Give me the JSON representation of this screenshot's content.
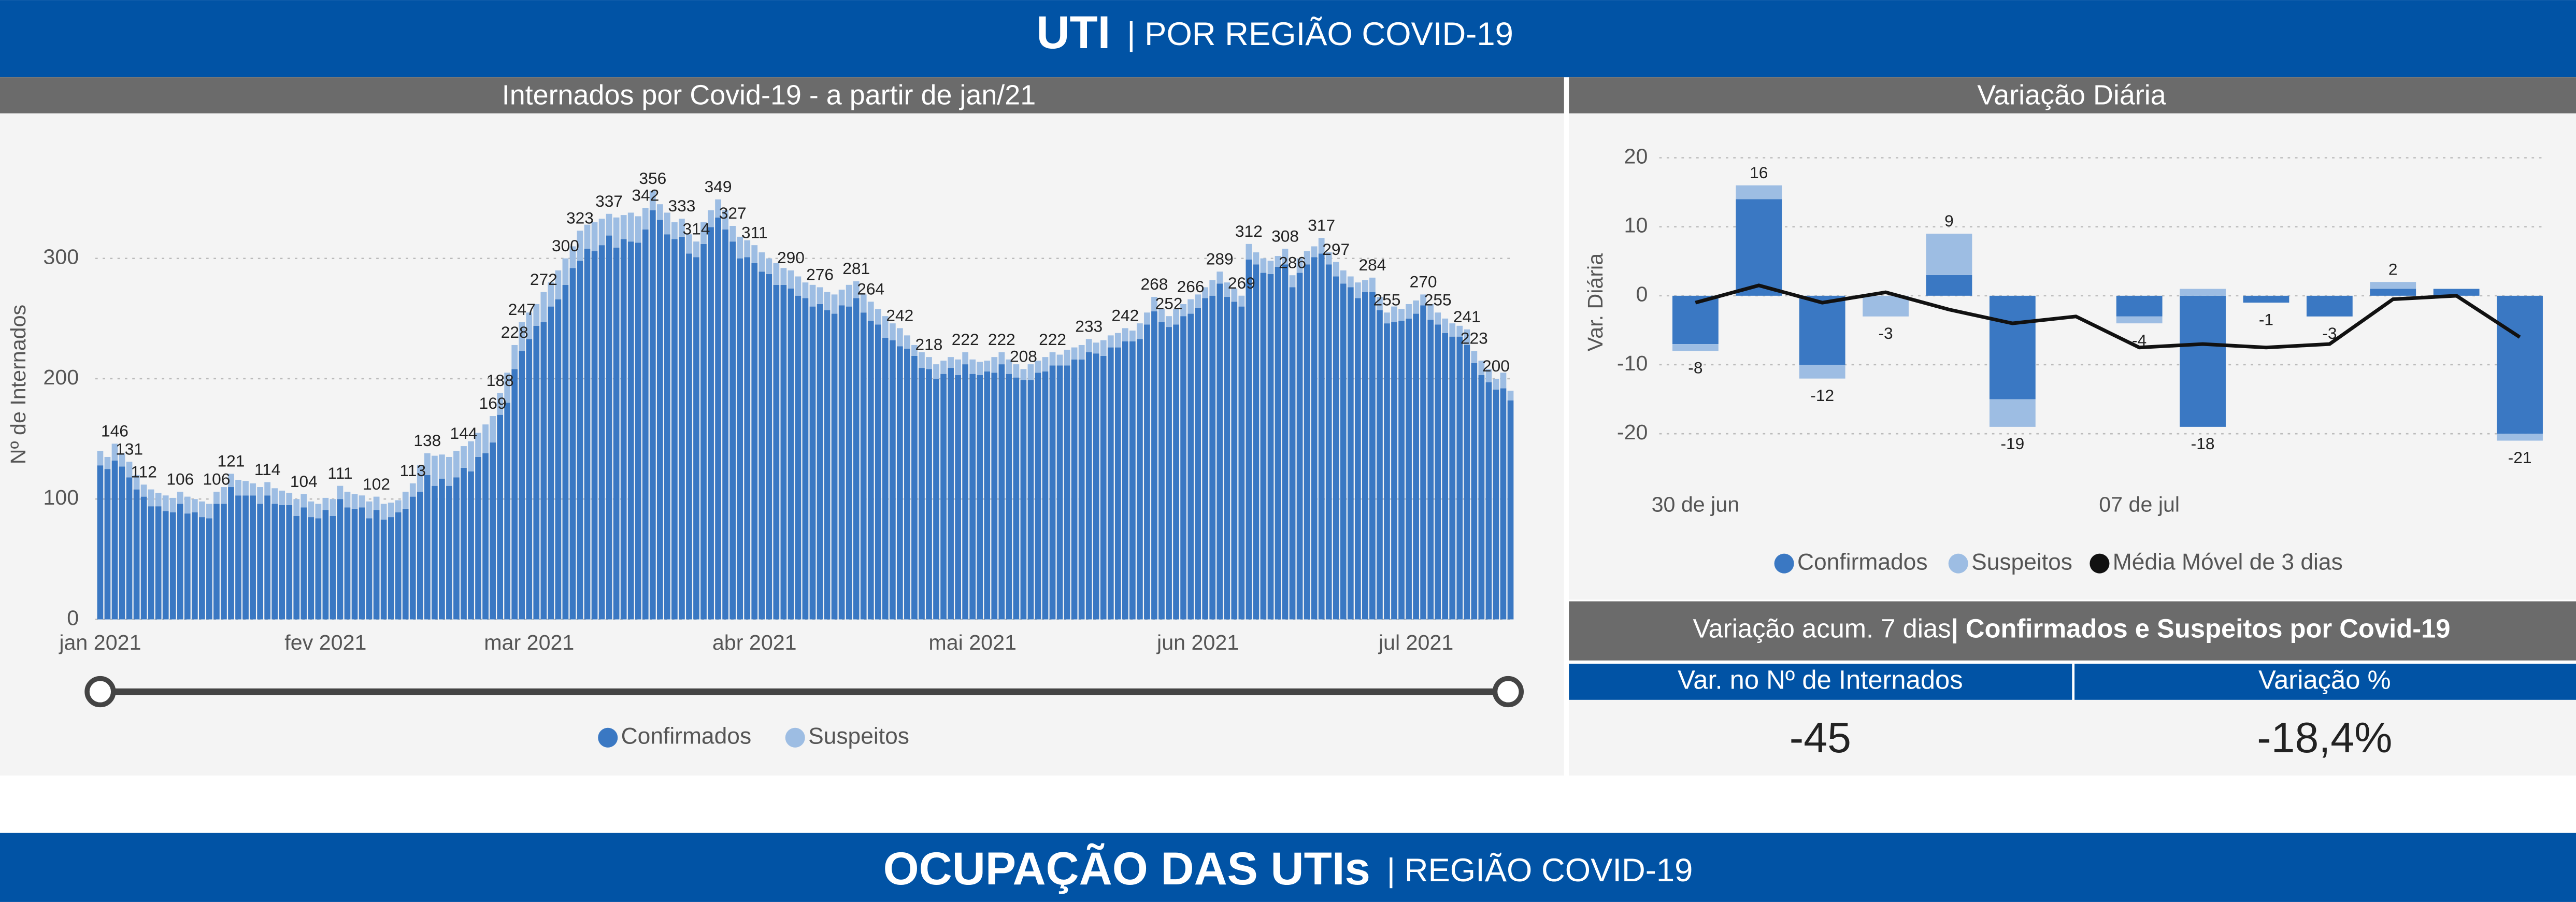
{
  "header": {
    "title": "UTI",
    "subtitle": "| POR REGIÃO COVID-19"
  },
  "summary": {
    "title": "Variação acum. 7 dias",
    "subtitle": "| Confirmados e Suspeitos por Covid-19",
    "columns": [
      "Var. no Nº de Internados",
      "Variação %"
    ],
    "values": [
      "-45",
      "-18,4%"
    ]
  },
  "footer_header": {
    "title": "OCUPAÇÃO DAS UTIs",
    "subtitle": "| REGIÃO COVID-19"
  },
  "chart_data": [
    {
      "type": "bar",
      "stacked": true,
      "title": "Internados por Covid-19 - a partir de jan/21",
      "y_label": "Nº de Internados",
      "categories": [
        "jan 2021",
        null,
        null,
        null,
        null,
        null,
        null,
        null,
        null,
        null,
        null,
        null,
        null,
        null,
        null,
        null,
        null,
        null,
        null,
        null,
        null,
        null,
        null,
        null,
        null,
        null,
        null,
        null,
        null,
        null,
        null,
        "fev 2021",
        null,
        null,
        null,
        null,
        null,
        null,
        null,
        null,
        null,
        null,
        null,
        null,
        null,
        null,
        null,
        null,
        null,
        null,
        null,
        null,
        null,
        null,
        null,
        null,
        null,
        null,
        null,
        "mar 2021",
        null,
        null,
        null,
        null,
        null,
        null,
        null,
        null,
        null,
        null,
        null,
        null,
        null,
        null,
        null,
        null,
        null,
        null,
        null,
        null,
        null,
        null,
        null,
        null,
        null,
        null,
        null,
        null,
        null,
        null,
        "abr 2021",
        null,
        null,
        null,
        null,
        null,
        null,
        null,
        null,
        null,
        null,
        null,
        null,
        null,
        null,
        null,
        null,
        null,
        null,
        null,
        null,
        null,
        null,
        null,
        null,
        null,
        null,
        null,
        null,
        null,
        "mai 2021",
        null,
        null,
        null,
        null,
        null,
        null,
        null,
        null,
        null,
        null,
        null,
        null,
        null,
        null,
        null,
        null,
        null,
        null,
        null,
        null,
        null,
        null,
        null,
        null,
        null,
        null,
        null,
        null,
        null,
        null,
        "jun 2021",
        null,
        null,
        null,
        null,
        null,
        null,
        null,
        null,
        null,
        null,
        null,
        null,
        null,
        null,
        null,
        null,
        null,
        null,
        null,
        null,
        null,
        null,
        null,
        null,
        null,
        null,
        null,
        null,
        null,
        "jul 2021",
        null,
        null,
        null,
        null,
        null,
        null,
        null,
        null,
        null,
        null,
        null,
        null,
        null
      ],
      "series": [
        {
          "name": "Confirmados",
          "color": "#3a78c3",
          "values": [
            128,
            125,
            132,
            127,
            118,
            108,
            102,
            94,
            94,
            90,
            89,
            96,
            88,
            89,
            85,
            84,
            96,
            96,
            110,
            103,
            103,
            103,
            96,
            103,
            96,
            95,
            95,
            86,
            93,
            85,
            84,
            91,
            86,
            100,
            93,
            92,
            93,
            84,
            91,
            83,
            85,
            89,
            92,
            102,
            106,
            120,
            111,
            117,
            111,
            118,
            126,
            123,
            135,
            138,
            147,
            170,
            180,
            208,
            223,
            233,
            244,
            247,
            260,
            266,
            278,
            292,
            298,
            308,
            306,
            311,
            319,
            309,
            316,
            314,
            313,
            324,
            340,
            332,
            320,
            316,
            318,
            304,
            301,
            312,
            326,
            334,
            324,
            314,
            300,
            301,
            296,
            289,
            287,
            278,
            278,
            275,
            269,
            267,
            260,
            262,
            257,
            254,
            261,
            260,
            267,
            255,
            248,
            245,
            234,
            232,
            227,
            225,
            219,
            209,
            208,
            200,
            204,
            209,
            203,
            212,
            204,
            203,
            206,
            205,
            212,
            204,
            201,
            199,
            199,
            205,
            206,
            211,
            211,
            211,
            216,
            216,
            222,
            221,
            219,
            226,
            226,
            231,
            231,
            233,
            245,
            256,
            247,
            243,
            245,
            252,
            254,
            259,
            267,
            269,
            279,
            268,
            264,
            260,
            299,
            295,
            288,
            287,
            293,
            295,
            276,
            288,
            295,
            301,
            304,
            295,
            285,
            279,
            276,
            267,
            272,
            272,
            257,
            246,
            247,
            248,
            250,
            254,
            261,
            249,
            245,
            238,
            235,
            235,
            228,
            213,
            203,
            197,
            191,
            192,
            182
          ]
        },
        {
          "name": "Suspeitos",
          "color": "#9dbde3",
          "values": [
            12,
            10,
            14,
            11,
            13,
            12,
            10,
            14,
            11,
            13,
            12,
            10,
            14,
            11,
            13,
            12,
            10,
            14,
            11,
            13,
            12,
            10,
            14,
            11,
            13,
            12,
            10,
            14,
            11,
            13,
            12,
            10,
            14,
            11,
            13,
            12,
            10,
            14,
            11,
            13,
            12,
            10,
            14,
            11,
            22,
            18,
            25,
            20,
            24,
            22,
            18,
            25,
            20,
            24,
            22,
            18,
            25,
            20,
            24,
            22,
            18,
            25,
            20,
            24,
            22,
            18,
            25,
            20,
            24,
            22,
            18,
            25,
            20,
            24,
            22,
            18,
            16,
            13,
            18,
            14,
            15,
            16,
            13,
            18,
            14,
            15,
            16,
            13,
            18,
            14,
            15,
            16,
            13,
            18,
            14,
            15,
            16,
            13,
            18,
            14,
            15,
            16,
            13,
            18,
            14,
            15,
            16,
            13,
            18,
            14,
            15,
            11,
            9,
            13,
            10,
            12,
            11,
            9,
            13,
            10,
            12,
            11,
            9,
            13,
            10,
            12,
            11,
            9,
            13,
            10,
            12,
            11,
            9,
            13,
            10,
            12,
            11,
            9,
            13,
            10,
            12,
            11,
            9,
            13,
            10,
            12,
            11,
            9,
            13,
            10,
            12,
            11,
            9,
            13,
            10,
            12,
            11,
            9,
            13,
            10,
            12,
            11,
            9,
            13,
            10,
            12,
            11,
            9,
            13,
            10,
            12,
            11,
            9,
            13,
            10,
            12,
            11,
            9,
            13,
            10,
            12,
            11,
            9,
            13,
            10,
            12,
            11,
            9,
            13,
            10,
            12,
            11,
            9,
            13,
            8
          ]
        }
      ],
      "total_labels": [
        null,
        null,
        146,
        null,
        131,
        null,
        112,
        null,
        null,
        null,
        null,
        106,
        null,
        null,
        null,
        null,
        106,
        null,
        121,
        null,
        null,
        null,
        null,
        114,
        null,
        null,
        null,
        null,
        104,
        null,
        null,
        null,
        null,
        111,
        null,
        null,
        null,
        null,
        102,
        null,
        null,
        null,
        null,
        113,
        null,
        138,
        null,
        null,
        null,
        null,
        144,
        null,
        null,
        null,
        169,
        188,
        null,
        228,
        247,
        null,
        null,
        272,
        null,
        null,
        300,
        null,
        323,
        null,
        null,
        null,
        337,
        null,
        null,
        null,
        null,
        342,
        356,
        null,
        null,
        null,
        333,
        null,
        314,
        null,
        null,
        349,
        null,
        327,
        null,
        null,
        311,
        null,
        null,
        null,
        null,
        290,
        null,
        null,
        null,
        276,
        null,
        null,
        null,
        null,
        281,
        null,
        264,
        null,
        null,
        null,
        242,
        null,
        null,
        null,
        218,
        null,
        null,
        null,
        null,
        222,
        null,
        null,
        null,
        null,
        222,
        null,
        null,
        208,
        null,
        null,
        null,
        222,
        null,
        null,
        null,
        null,
        233,
        null,
        null,
        null,
        null,
        242,
        null,
        null,
        null,
        268,
        null,
        252,
        null,
        null,
        266,
        null,
        null,
        null,
        289,
        null,
        null,
        269,
        312,
        null,
        null,
        null,
        null,
        308,
        286,
        null,
        null,
        null,
        317,
        null,
        297,
        null,
        null,
        null,
        null,
        284,
        null,
        255,
        null,
        null,
        null,
        null,
        270,
        null,
        255,
        null,
        null,
        null,
        241,
        223,
        null,
        null,
        200,
        null,
        null
      ],
      "ylim": [
        0,
        400
      ],
      "yticks": [
        0,
        100,
        200,
        300
      ],
      "grid": true,
      "legend": "bottom"
    },
    {
      "type": "bar",
      "stacked": true,
      "title": "Variação Diária",
      "y_label": "Var. Diária",
      "categories": [
        "30 de jun",
        null,
        null,
        null,
        null,
        null,
        null,
        "07 de jul",
        null,
        null,
        null,
        null,
        null,
        null
      ],
      "series": [
        {
          "name": "Confirmados",
          "color": "#3a78c3",
          "values": [
            -7,
            14,
            -10,
            0,
            3,
            -15,
            0,
            -3,
            -19,
            -1,
            -3,
            1,
            1,
            -20
          ]
        },
        {
          "name": "Suspeitos",
          "color": "#9dbde3",
          "values": [
            -1,
            2,
            -2,
            -3,
            6,
            -4,
            0,
            -1,
            1,
            0,
            0,
            1,
            0,
            -1
          ]
        },
        {
          "name": "Média Móvel de 3 dias",
          "color": "#111111",
          "type": "line",
          "values": [
            -1,
            1.5,
            -1,
            0.5,
            -2,
            -4,
            -3,
            -7.5,
            -7,
            -7.5,
            -7,
            -0.5,
            0,
            -6
          ]
        }
      ],
      "total_labels": [
        -8,
        16,
        -12,
        -3,
        9,
        -19,
        null,
        -4,
        -18,
        -1,
        -3,
        2,
        null,
        -21
      ],
      "ylim": [
        -24,
        22
      ],
      "yticks": [
        -20,
        -10,
        0,
        10,
        20
      ],
      "grid": true,
      "legend": "bottom"
    }
  ]
}
